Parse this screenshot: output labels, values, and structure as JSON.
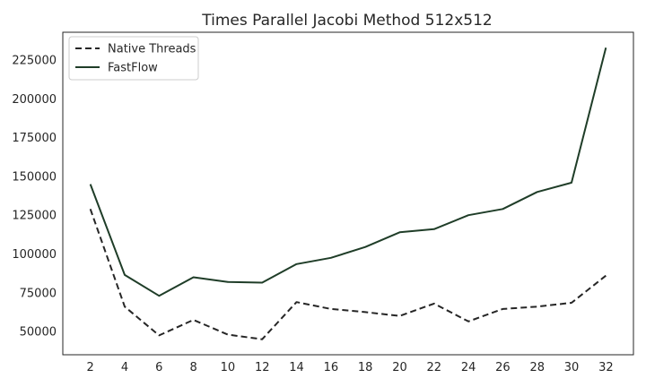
{
  "chart_data": {
    "type": "line",
    "title": "Times Parallel Jacobi Method 512x512",
    "xlabel": "",
    "ylabel": "",
    "x": [
      2,
      4,
      6,
      8,
      10,
      12,
      14,
      16,
      18,
      20,
      22,
      24,
      26,
      28,
      30,
      32
    ],
    "xlim": [
      0.4,
      33.6
    ],
    "ylim": [
      35000,
      243000
    ],
    "yticks": [
      50000,
      75000,
      100000,
      125000,
      150000,
      175000,
      200000,
      225000
    ],
    "grid": false,
    "legend_position": "top-left",
    "series": [
      {
        "name": "Native Threads",
        "style": "dashed",
        "color": "#262626",
        "values": [
          129000,
          66000,
          47500,
          57500,
          48000,
          45000,
          69000,
          64500,
          62500,
          60000,
          68000,
          56500,
          64500,
          66000,
          68500,
          86000
        ]
      },
      {
        "name": "FastFlow",
        "style": "solid",
        "color": "#1f3d28",
        "values": [
          145000,
          86500,
          73000,
          85000,
          82000,
          81500,
          93500,
          97500,
          104500,
          114000,
          116000,
          125000,
          129000,
          140000,
          146000,
          233000
        ]
      }
    ]
  }
}
